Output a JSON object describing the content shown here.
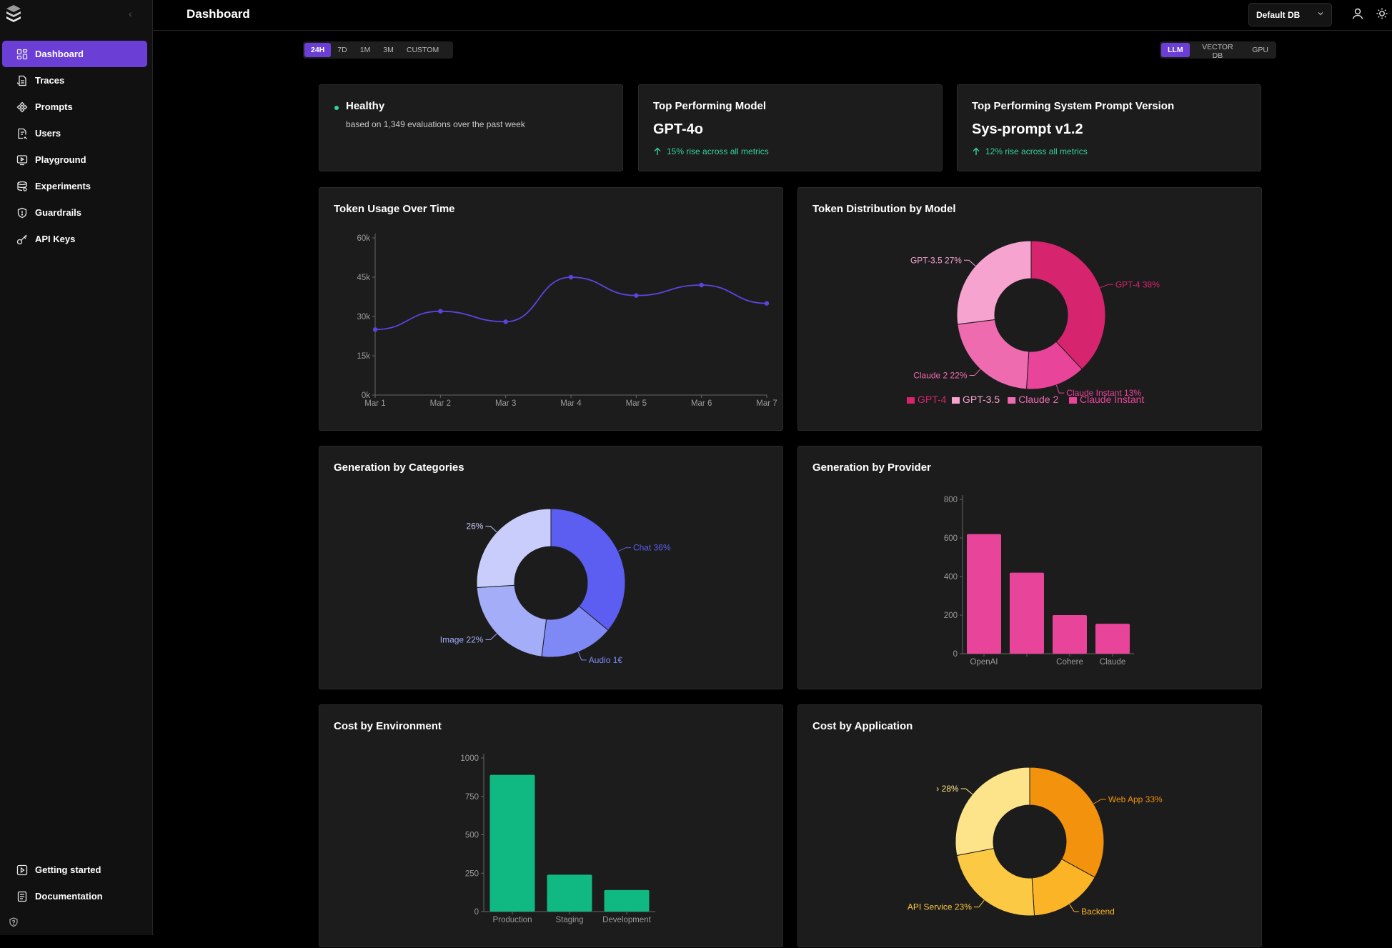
{
  "sidebar": {
    "items": [
      {
        "label": "Dashboard",
        "icon": "dashboard-icon",
        "active": true
      },
      {
        "label": "Traces",
        "icon": "traces-icon"
      },
      {
        "label": "Prompts",
        "icon": "prompts-icon"
      },
      {
        "label": "Users",
        "icon": "users-icon"
      },
      {
        "label": "Playground",
        "icon": "playground-icon"
      },
      {
        "label": "Experiments",
        "icon": "experiments-icon"
      },
      {
        "label": "Guardrails",
        "icon": "shield-icon"
      },
      {
        "label": "API Keys",
        "icon": "key-icon"
      }
    ],
    "bottom_items": [
      {
        "label": "Getting started",
        "icon": "play-icon"
      },
      {
        "label": "Documentation",
        "icon": "document-icon"
      }
    ]
  },
  "header": {
    "title": "Dashboard",
    "db_select": "Default DB"
  },
  "time_range": {
    "options": [
      "24H",
      "7D",
      "1M",
      "3M",
      "CUSTOM"
    ],
    "selected": "24H"
  },
  "category_switch": {
    "options": [
      "LLM",
      "VECTOR DB",
      "GPU"
    ],
    "selected": "LLM"
  },
  "stats": {
    "health": {
      "title": "Healthy",
      "subtitle": "based on 1,349 evaluations over the past week"
    },
    "top_model": {
      "title": "Top Performing Model",
      "value": "GPT-4o",
      "rise": "15% rise across all metrics"
    },
    "top_prompt": {
      "title": "Top Performing System Prompt Version",
      "value": "Sys-prompt v1.2",
      "rise": "12% rise across all metrics"
    }
  },
  "colors": {
    "accent": "#6b3fd6",
    "line": "#5b45e0",
    "pinks": [
      "#d6246e",
      "#e8449a",
      "#ee6bb0",
      "#f7a3cf"
    ],
    "blues": [
      "#5b5ef0",
      "#7e89f5",
      "#a3adf8",
      "#c8cdfb"
    ],
    "bar_pink": "#e8449a",
    "green": "#10b981",
    "ambers": [
      "#f2920d",
      "#fbb426",
      "#fcc944",
      "#fde38a"
    ]
  },
  "chart_data": [
    {
      "id": "token_usage",
      "type": "line",
      "title": "Token Usage Over Time",
      "x": [
        "Mar 1",
        "Mar 2",
        "Mar 3",
        "Mar 4",
        "Mar 5",
        "Mar 6",
        "Mar 7"
      ],
      "values": [
        25000,
        32000,
        28000,
        45000,
        38000,
        42000,
        35000
      ],
      "ylim": [
        0,
        60000
      ],
      "yticks": [
        "0k",
        "15k",
        "30k",
        "45k",
        "60k"
      ],
      "ytick_values": [
        0,
        15000,
        30000,
        45000,
        60000
      ]
    },
    {
      "id": "token_dist",
      "type": "pie",
      "title": "Token Distribution by Model",
      "slices": [
        {
          "label": "GPT-4",
          "value": 38,
          "display": "GPT-4 38%"
        },
        {
          "label": "Claude Instant",
          "value": 13,
          "display": "Claude Instant 13%"
        },
        {
          "label": "Claude 2",
          "value": 22,
          "display": "Claude 2 22%"
        },
        {
          "label": "GPT-3.5",
          "value": 27,
          "display": "GPT-3.5 27%"
        }
      ],
      "legend": [
        "GPT-4",
        "GPT-3.5",
        "Claude 2",
        "Claude Instant"
      ],
      "legend_placement": "bottom"
    },
    {
      "id": "gen_categories",
      "type": "pie",
      "title": "Generation by Categories",
      "slices": [
        {
          "label": "Chat",
          "value": 36,
          "display": "Chat 36%"
        },
        {
          "label": "Audio",
          "value": 16,
          "display": "Audio 1€"
        },
        {
          "label": "Image",
          "value": 22,
          "display": "Image 22%"
        },
        {
          "value": 26,
          "display": "26%"
        }
      ]
    },
    {
      "id": "gen_provider",
      "type": "bar",
      "title": "Generation by Provider",
      "categories": [
        "OpenAI",
        "",
        "Cohere",
        "Claude"
      ],
      "values": [
        620,
        420,
        200,
        155
      ],
      "ylim": [
        0,
        800
      ],
      "yticks": [
        "0",
        "200",
        "400",
        "600",
        "800"
      ],
      "ytick_values": [
        0,
        200,
        400,
        600,
        800
      ]
    },
    {
      "id": "cost_env",
      "type": "bar",
      "title": "Cost by Environment",
      "categories": [
        "Production",
        "Staging",
        "Development"
      ],
      "values": [
        890,
        240,
        140
      ],
      "ylim": [
        0,
        1000
      ],
      "yticks": [
        "0",
        "250",
        "500",
        "750",
        "1000"
      ],
      "ytick_values": [
        0,
        250,
        500,
        750,
        1000
      ]
    },
    {
      "id": "cost_app",
      "type": "pie",
      "title": "Cost by Application",
      "slices": [
        {
          "label": "Web App",
          "value": 33,
          "display": "Web App 33%"
        },
        {
          "label": "Backend",
          "value": 16,
          "display": "Backend"
        },
        {
          "label": "API Service",
          "value": 23,
          "display": "API Service 23%"
        },
        {
          "value": 28,
          "display": "› 28%"
        }
      ]
    }
  ]
}
